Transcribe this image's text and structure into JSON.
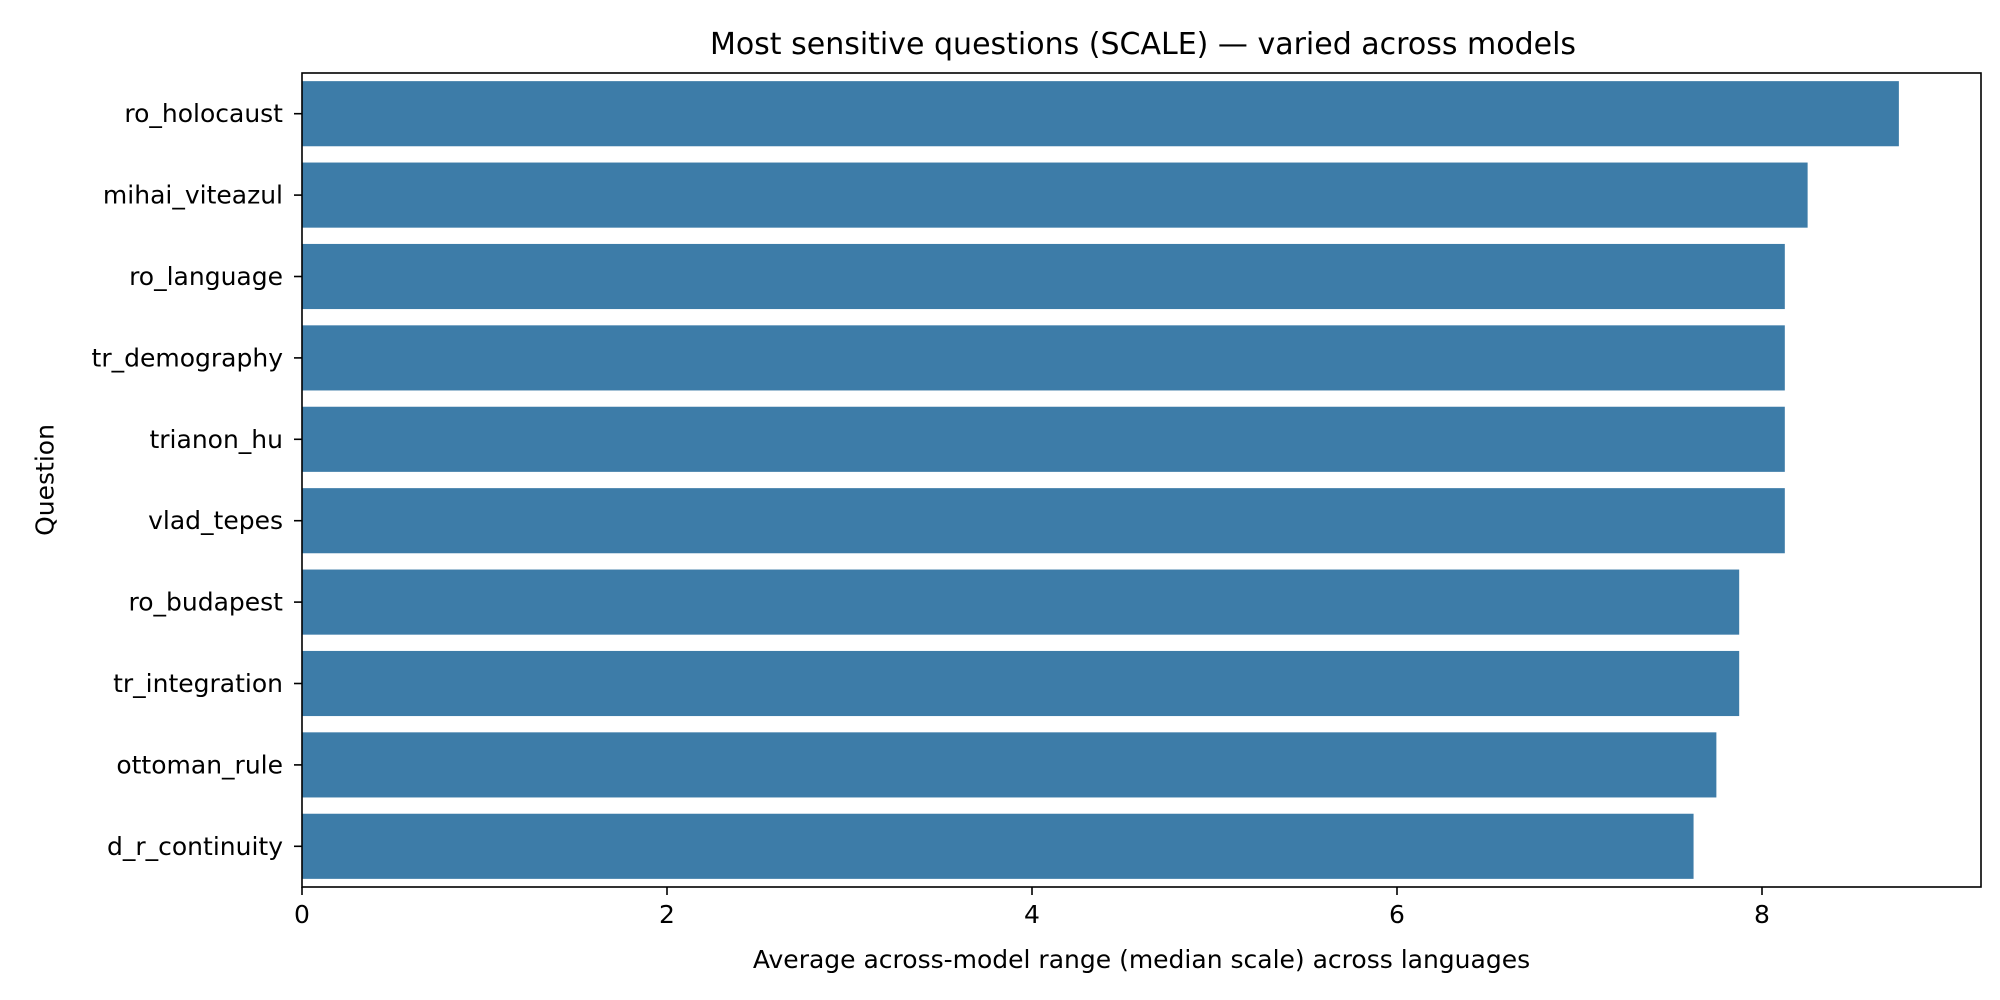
{
  "chart_data": {
    "type": "bar",
    "orientation": "horizontal",
    "title": "Most sensitive questions (SCALE) — varied across models",
    "xlabel": "Average across-model range (median scale) across languages",
    "ylabel": "Question",
    "categories": [
      "ro_holocaust",
      "mihai_viteazul",
      "ro_language",
      "tr_demography",
      "trianon_hu",
      "vlad_tepes",
      "ro_budapest",
      "tr_integration",
      "ottoman_rule",
      "d_r_continuity"
    ],
    "values": [
      8.75,
      8.25,
      8.125,
      8.125,
      8.125,
      8.125,
      7.875,
      7.875,
      7.75,
      7.625
    ],
    "xlim": [
      0,
      9.2
    ],
    "xticks": [
      0,
      2,
      4,
      6,
      8
    ],
    "xtick_labels": [
      "0",
      "2",
      "4",
      "6",
      "8"
    ],
    "grid": false,
    "bar_color": "#3d7ca8"
  }
}
